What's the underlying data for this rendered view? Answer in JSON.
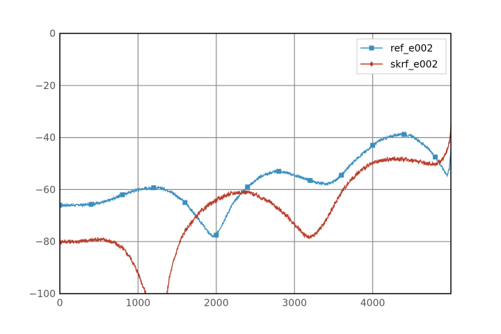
{
  "chart_data": {
    "type": "line",
    "title": "",
    "xlabel": "",
    "ylabel": "",
    "xlim": [
      0,
      5000
    ],
    "ylim": [
      -100,
      0
    ],
    "x_ticks": [
      0,
      1000,
      2000,
      3000,
      4000
    ],
    "y_ticks": [
      0,
      -20,
      -40,
      -60,
      -80,
      -100
    ],
    "x_tick_labels": [
      "0",
      "1000",
      "2000",
      "3000",
      "4000"
    ],
    "y_tick_labels": [
      "0",
      "−20",
      "−40",
      "−60",
      "−80",
      "−100"
    ],
    "grid": true,
    "legend_position": "top-right",
    "series": [
      {
        "name": "ref_e002",
        "color": "#3a8fc0",
        "marker": "square",
        "marker_x": [
          0,
          400,
          800,
          1200,
          1600,
          2000,
          2400,
          2800,
          3200,
          3600,
          4000,
          4400,
          4800
        ],
        "x": [
          0,
          200,
          400,
          600,
          800,
          1000,
          1100,
          1200,
          1300,
          1400,
          1500,
          1600,
          1700,
          1800,
          1900,
          1950,
          2000,
          2100,
          2200,
          2300,
          2400,
          2500,
          2600,
          2700,
          2800,
          2900,
          3000,
          3100,
          3200,
          3300,
          3400,
          3500,
          3600,
          3700,
          3800,
          3900,
          4000,
          4100,
          4200,
          4300,
          4400,
          4500,
          4600,
          4700,
          4800,
          4900,
          4950,
          4980,
          5000
        ],
        "y": [
          -66,
          -66,
          -65.7,
          -64.5,
          -62,
          -60,
          -59.5,
          -59.3,
          -59.5,
          -60.5,
          -62.5,
          -65,
          -68.5,
          -72.5,
          -76.5,
          -78,
          -77.5,
          -72,
          -66,
          -62,
          -59,
          -56.5,
          -54.5,
          -53.5,
          -53,
          -53.5,
          -54.5,
          -55.5,
          -56.5,
          -57.5,
          -58,
          -57,
          -54.5,
          -51,
          -48,
          -45.5,
          -43,
          -41,
          -40,
          -39,
          -38.8,
          -39.5,
          -41.5,
          -44,
          -47.5,
          -52,
          -54.5,
          -52,
          -45
        ]
      },
      {
        "name": "skrf_e002",
        "color": "#b8402e",
        "marker": "diamond",
        "x": [
          0,
          200,
          400,
          500,
          600,
          700,
          800,
          900,
          1000,
          1050,
          1100,
          1150,
          1350,
          1400,
          1450,
          1500,
          1550,
          1600,
          1700,
          1800,
          1900,
          2000,
          2100,
          2200,
          2300,
          2400,
          2500,
          2600,
          2700,
          2800,
          2900,
          3000,
          3100,
          3150,
          3200,
          3250,
          3300,
          3400,
          3500,
          3600,
          3700,
          3800,
          3900,
          4000,
          4100,
          4200,
          4300,
          4400,
          4500,
          4600,
          4700,
          4800,
          4850,
          4900,
          4950,
          4980,
          5000
        ],
        "y": [
          -80,
          -80,
          -79.5,
          -79,
          -79.5,
          -80.5,
          -82.5,
          -86,
          -92,
          -96,
          -100,
          -104,
          -104,
          -94,
          -88,
          -83,
          -79,
          -76,
          -72,
          -68.5,
          -66,
          -64,
          -62.5,
          -61.5,
          -61,
          -61,
          -62,
          -63.5,
          -65,
          -67.5,
          -70,
          -73.5,
          -76.5,
          -78,
          -78.5,
          -77.5,
          -76,
          -72,
          -66.5,
          -61,
          -57,
          -54,
          -51.5,
          -50,
          -49,
          -48.5,
          -48.2,
          -48.3,
          -48.7,
          -49.3,
          -50,
          -50.2,
          -49.5,
          -48,
          -45,
          -42,
          -36
        ]
      }
    ]
  }
}
